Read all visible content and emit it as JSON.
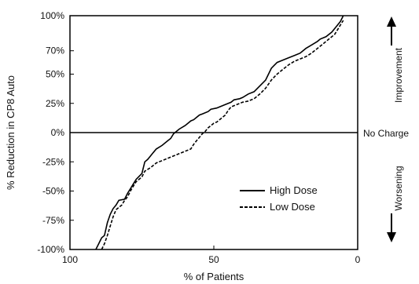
{
  "chart_data": {
    "type": "line",
    "title": "",
    "xlabel": "% of Patients",
    "ylabel": "% Reduction in CP8 Auto",
    "xlim": [
      100,
      0
    ],
    "ylim": [
      -100,
      100
    ],
    "x_ticks": [
      100,
      50,
      0
    ],
    "x_tick_labels": [
      "100",
      "50",
      "0"
    ],
    "y_ticks": [
      100,
      70,
      50,
      25,
      0,
      -25,
      -50,
      -75,
      -100
    ],
    "y_tick_labels": [
      "100%",
      "70%",
      "50%",
      "25%",
      "0%",
      "-25%",
      "-50%",
      "-75%",
      "-100%"
    ],
    "grid": false,
    "legend_position": "lower-right",
    "reference_line": {
      "y": 0,
      "label": "No Charge"
    },
    "side_annotations": {
      "improvement": "Improvement",
      "worsening": "Worsening"
    },
    "series": [
      {
        "name": "High Dose",
        "style": "solid",
        "color": "#000000",
        "points": [
          [
            91,
            -100
          ],
          [
            90,
            -95
          ],
          [
            89,
            -90
          ],
          [
            88,
            -88
          ],
          [
            87,
            -77
          ],
          [
            86,
            -70
          ],
          [
            85,
            -65
          ],
          [
            84,
            -62
          ],
          [
            83,
            -58
          ],
          [
            81,
            -57
          ],
          [
            80,
            -52
          ],
          [
            79,
            -48
          ],
          [
            78,
            -44
          ],
          [
            77,
            -40
          ],
          [
            75,
            -35
          ],
          [
            74,
            -25
          ],
          [
            73,
            -23
          ],
          [
            72,
            -20
          ],
          [
            71,
            -17
          ],
          [
            70,
            -14
          ],
          [
            68,
            -11
          ],
          [
            66,
            -7
          ],
          [
            65,
            -5
          ],
          [
            64,
            -1
          ],
          [
            63,
            1
          ],
          [
            62,
            3
          ],
          [
            60,
            6
          ],
          [
            59,
            8
          ],
          [
            58,
            10
          ],
          [
            57,
            11
          ],
          [
            56,
            13
          ],
          [
            55,
            15
          ],
          [
            54,
            16
          ],
          [
            52,
            18
          ],
          [
            51,
            20
          ],
          [
            49,
            21
          ],
          [
            48,
            22
          ],
          [
            46,
            24
          ],
          [
            44,
            26
          ],
          [
            43,
            28
          ],
          [
            41,
            29
          ],
          [
            40,
            30
          ],
          [
            38,
            33
          ],
          [
            36,
            35
          ],
          [
            34,
            40
          ],
          [
            32,
            45
          ],
          [
            30,
            55
          ],
          [
            28,
            60
          ],
          [
            26,
            62
          ],
          [
            24,
            64
          ],
          [
            22,
            66
          ],
          [
            20,
            68
          ],
          [
            18,
            72
          ],
          [
            16,
            75
          ],
          [
            14,
            78
          ],
          [
            13,
            80
          ],
          [
            11,
            82
          ],
          [
            9,
            86
          ],
          [
            7,
            92
          ],
          [
            6,
            95
          ],
          [
            5,
            100
          ]
        ]
      },
      {
        "name": "Low Dose",
        "style": "dashed",
        "color": "#000000",
        "points": [
          [
            89,
            -100
          ],
          [
            88,
            -95
          ],
          [
            87,
            -88
          ],
          [
            86,
            -80
          ],
          [
            85,
            -72
          ],
          [
            84,
            -66
          ],
          [
            82,
            -62
          ],
          [
            81,
            -58
          ],
          [
            80,
            -55
          ],
          [
            79,
            -50
          ],
          [
            78,
            -46
          ],
          [
            77,
            -42
          ],
          [
            75,
            -38
          ],
          [
            74,
            -33
          ],
          [
            72,
            -30
          ],
          [
            71,
            -28
          ],
          [
            70,
            -26
          ],
          [
            68,
            -24
          ],
          [
            66,
            -22
          ],
          [
            64,
            -20
          ],
          [
            62,
            -18
          ],
          [
            60,
            -16
          ],
          [
            58,
            -14
          ],
          [
            57,
            -10
          ],
          [
            56,
            -7
          ],
          [
            55,
            -4
          ],
          [
            54,
            -1
          ],
          [
            53,
            1
          ],
          [
            52,
            4
          ],
          [
            51,
            6
          ],
          [
            50,
            8
          ],
          [
            49,
            9
          ],
          [
            48,
            11
          ],
          [
            47,
            13
          ],
          [
            46,
            15
          ],
          [
            45,
            19
          ],
          [
            44,
            22
          ],
          [
            42,
            24
          ],
          [
            40,
            26
          ],
          [
            38,
            27
          ],
          [
            36,
            29
          ],
          [
            34,
            33
          ],
          [
            32,
            38
          ],
          [
            30,
            45
          ],
          [
            28,
            50
          ],
          [
            26,
            54
          ],
          [
            24,
            58
          ],
          [
            22,
            61
          ],
          [
            20,
            63
          ],
          [
            18,
            65
          ],
          [
            16,
            68
          ],
          [
            14,
            72
          ],
          [
            12,
            76
          ],
          [
            10,
            80
          ],
          [
            8,
            84
          ],
          [
            7,
            88
          ],
          [
            6,
            92
          ],
          [
            5,
            96
          ]
        ]
      }
    ]
  }
}
